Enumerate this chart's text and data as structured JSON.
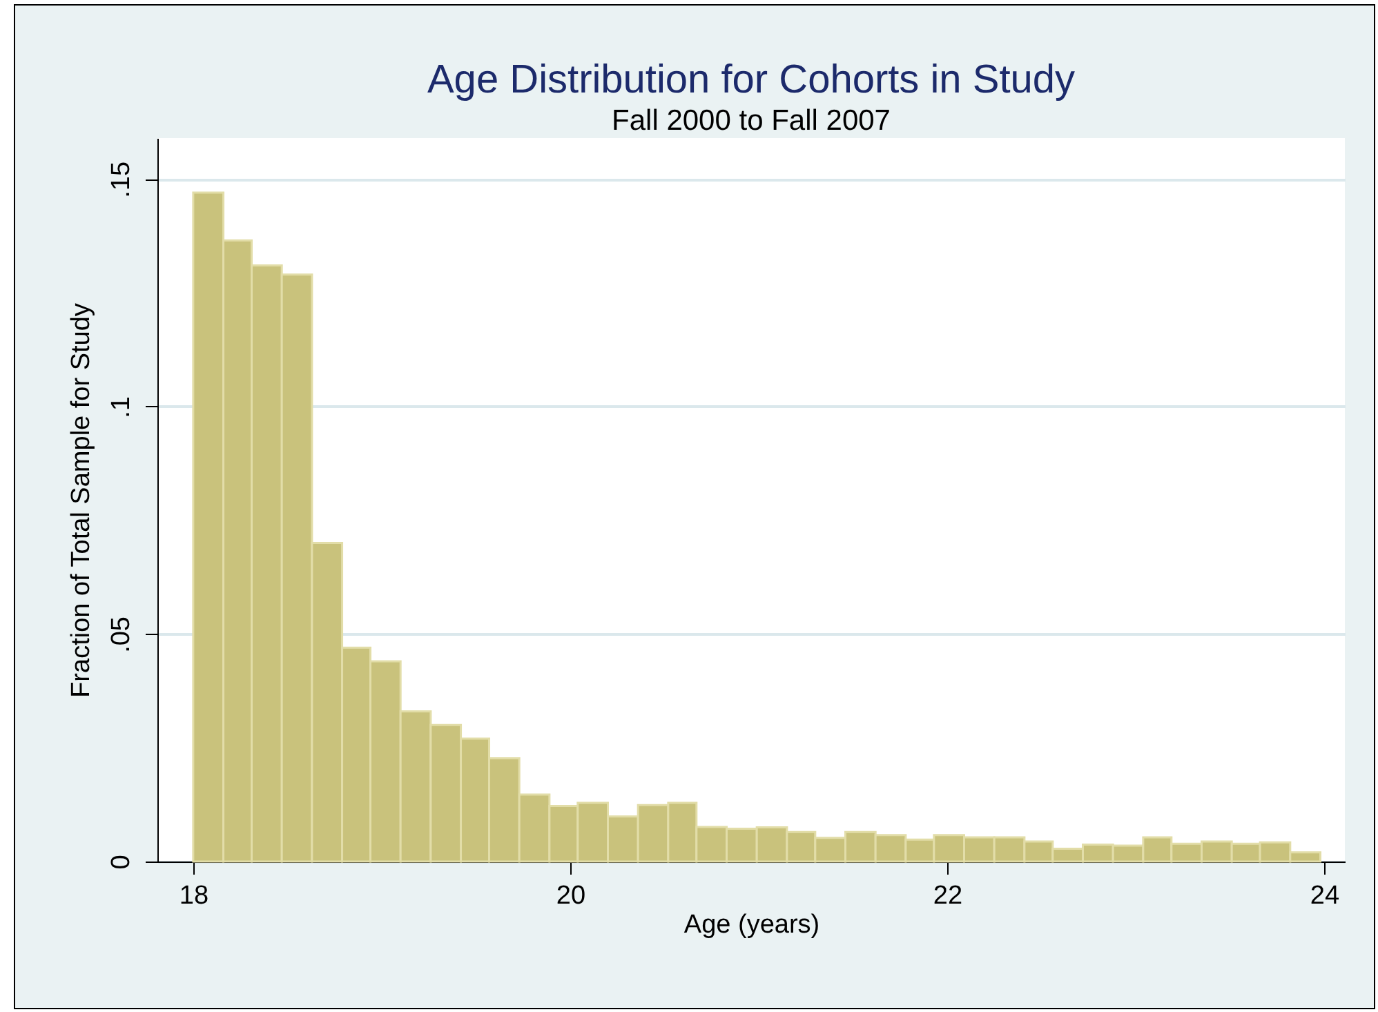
{
  "chart_data": {
    "type": "histogram",
    "title": "Age Distribution for Cohorts in Study",
    "subtitle": "Fall 2000 to Fall 2007",
    "xlabel": "Age (years)",
    "ylabel": "Fraction of Total Sample for Study",
    "bins": [
      18,
      18.16,
      18.31,
      18.47,
      18.63,
      18.79,
      18.94,
      19.1,
      19.26,
      19.42,
      19.57,
      19.73,
      19.89,
      20.04,
      20.2,
      20.36,
      20.52,
      20.67,
      20.83,
      20.99,
      21.15,
      21.3,
      21.46,
      21.62,
      21.78,
      21.93,
      22.09,
      22.25,
      22.41,
      22.56,
      22.72,
      22.88,
      23.04,
      23.19,
      23.35,
      23.51,
      23.66,
      23.82,
      23.98
    ],
    "values": [
      0.147,
      0.1365,
      0.131,
      0.129,
      0.07,
      0.047,
      0.044,
      0.033,
      0.03,
      0.027,
      0.0227,
      0.0147,
      0.0122,
      0.0129,
      0.0099,
      0.0124,
      0.0129,
      0.0076,
      0.0072,
      0.0075,
      0.0065,
      0.0052,
      0.0065,
      0.0058,
      0.0048,
      0.0058,
      0.0053,
      0.0053,
      0.0044,
      0.0028,
      0.0037,
      0.0035,
      0.0053,
      0.0039,
      0.0044,
      0.0039,
      0.0042,
      0.002
    ],
    "color": "#c9c27c",
    "xlim": [
      17.81,
      24.11
    ],
    "xticks": [
      18,
      20,
      22,
      24
    ],
    "ylim": [
      0,
      0.159
    ],
    "yticks": [
      0,
      {
        "value": 0.05,
        "label": ".05"
      },
      {
        "value": 0.1,
        "label": ".1"
      },
      {
        "value": 0.15,
        "label": ".15"
      }
    ],
    "grid": "y"
  }
}
